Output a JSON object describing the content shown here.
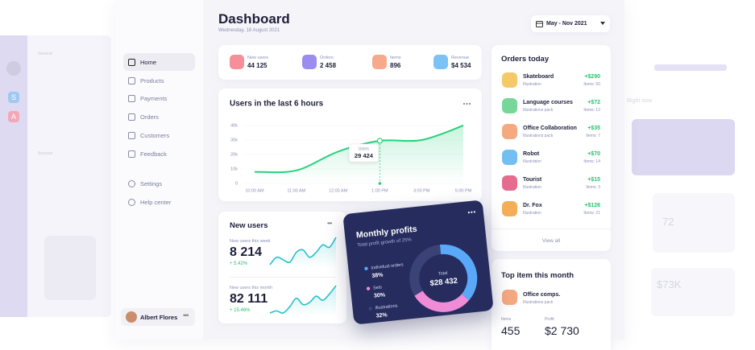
{
  "header": {
    "title": "Dashboard",
    "date": "Wednesday, 18 August 2021",
    "range": "May - Nov 2021"
  },
  "sidebar": {
    "menu": [
      "Home",
      "Products",
      "Payments",
      "Orders",
      "Customers",
      "Feedback"
    ],
    "settings": [
      "Settings",
      "Help center"
    ],
    "user": "Albert Flores"
  },
  "stats": [
    {
      "label": "New users",
      "value": "44 125",
      "color": "#f5909b"
    },
    {
      "label": "Orders",
      "value": "2 458",
      "color": "#9b8cf0"
    },
    {
      "label": "Items",
      "value": "896",
      "color": "#f7a98c"
    },
    {
      "label": "Revenue",
      "value": "$4 534",
      "color": "#7cc3f5"
    }
  ],
  "chart_data": [
    {
      "type": "line",
      "title": "Users in the last 6 hours",
      "categories": [
        "10:00 AM",
        "11:00 AM",
        "12:00 AM",
        "1:00 PM",
        "3:00 PM",
        "5:00 PM"
      ],
      "series": [
        {
          "name": "Users",
          "color": "#27d27d",
          "values": [
            8000,
            9000,
            22000,
            29424,
            30000,
            40000
          ],
          "value_labels": [
            null,
            null,
            null,
            "29 424",
            null,
            null
          ]
        }
      ],
      "ylim": [
        0,
        40000
      ],
      "yticks": [
        0,
        {
          "value": 10000,
          "label": "10k"
        },
        {
          "value": 20000,
          "label": "20k"
        },
        {
          "value": 30000,
          "label": "30k"
        },
        {
          "value": 40000,
          "label": "40k"
        }
      ],
      "grid": true
    },
    {
      "type": "donut",
      "title": "Monthly profits",
      "subtitle": "Total profit growth of 25%",
      "categories": [
        "Individual orders",
        "Sets",
        "Illustrations"
      ],
      "values": [
        38,
        30,
        32
      ],
      "value_labels": [
        "38%",
        "30%",
        "32%"
      ],
      "colors": [
        "#5aa9f8",
        "#f08bd8",
        "#3b4275"
      ],
      "center_label": "Total",
      "total": "$28 432"
    },
    {
      "type": "line",
      "color": "#25c2c9",
      "values": [
        4,
        7,
        6,
        5,
        9,
        10,
        7,
        9,
        12,
        11,
        15
      ]
    },
    {
      "type": "line",
      "color": "#25c2c9",
      "values": [
        3,
        4,
        3,
        6,
        10,
        7,
        8,
        11,
        9,
        12,
        16
      ]
    }
  ],
  "new_users": {
    "title": "New users",
    "items": [
      {
        "label": "New users this week",
        "value": "8 214",
        "change": "+ 5.42%"
      },
      {
        "label": "New users this month",
        "value": "82 111",
        "change": "+ 15.46%"
      }
    ]
  },
  "orders_today": {
    "title": "Orders today",
    "view_all": "View all",
    "items": [
      {
        "name": "Skateboard",
        "type": "Illustration",
        "amount": "+$290",
        "items": "Items: 50",
        "color": "#f2c14e"
      },
      {
        "name": "Language courses",
        "type": "Illustrations pack",
        "amount": "+$72",
        "items": "Items: 12",
        "color": "#5fd08a"
      },
      {
        "name": "Office Collaboration",
        "type": "Illustrations pack",
        "amount": "+$35",
        "items": "Items: 7",
        "color": "#f39a6b"
      },
      {
        "name": "Robot",
        "type": "Illustration",
        "amount": "+$70",
        "items": "Items: 14",
        "color": "#5ab4f0"
      },
      {
        "name": "Tourist",
        "type": "Illustration",
        "amount": "+$15",
        "items": "Items: 3",
        "color": "#e0527a"
      },
      {
        "name": "Dr. Fox",
        "type": "Illustration",
        "amount": "+$126",
        "items": "Items: 21",
        "color": "#f2a03b"
      }
    ]
  },
  "top_item": {
    "title": "Top item this month",
    "name": "Office comps.",
    "type": "Illustrations pack",
    "items_label": "Items",
    "items": "455",
    "profit_label": "Profit",
    "profit": "$2 730"
  },
  "background": {
    "left": [
      "General",
      "Account"
    ],
    "apps": [
      "S",
      "A"
    ],
    "right": [
      "Right now",
      "72",
      "$73K"
    ]
  }
}
